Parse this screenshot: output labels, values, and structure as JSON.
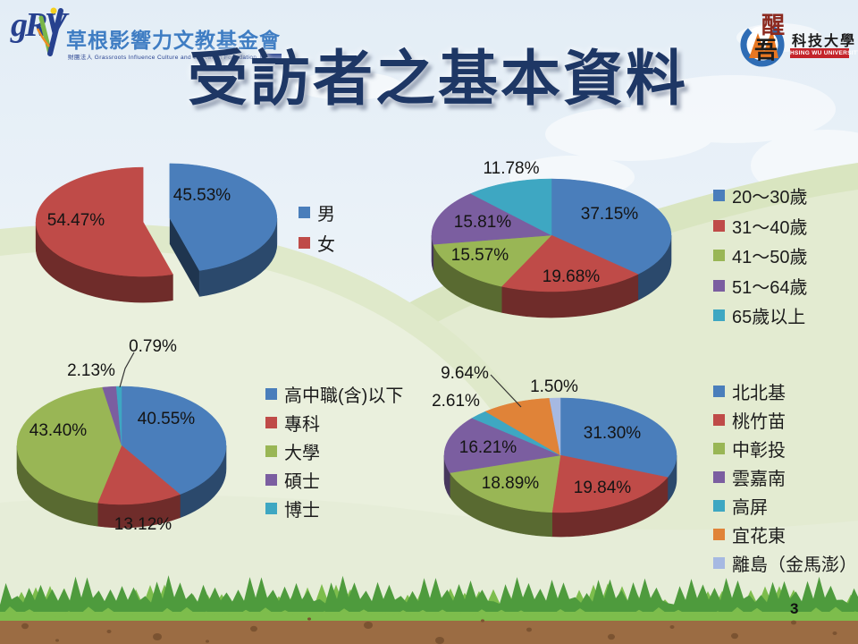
{
  "slide": {
    "page_number": "3"
  },
  "header": {
    "title": "受訪者之基本資料",
    "left_logo": {
      "monogram": "gRV",
      "org_name": "草根影響力文教基金會",
      "org_subtitle": "財團法人 Grassroots Influence Culture and Education Foundation"
    },
    "right_logo": {
      "univ_char_1": "醒",
      "univ_char_2": "吾",
      "univ_rest": "科技大學",
      "univ_en": "HSING WU UNIVERSITY"
    }
  },
  "chart_data": [
    {
      "id": "gender",
      "type": "pie",
      "style": "3d-exploded",
      "labels": [
        "男",
        "女"
      ],
      "values": [
        45.53,
        54.47
      ],
      "value_labels": [
        "45.53%",
        "54.47%"
      ],
      "colors": [
        "#4a7ebb",
        "#bf4b48"
      ],
      "legend_position": "right"
    },
    {
      "id": "age",
      "type": "pie",
      "style": "3d",
      "labels": [
        "20～30歲",
        "31～40歲",
        "41～50歲",
        "51～64歲",
        "65歲以上"
      ],
      "values": [
        37.15,
        19.68,
        15.57,
        15.81,
        11.78
      ],
      "value_labels": [
        "37.15%",
        "19.68%",
        "15.57%",
        "15.81%",
        "11.78%"
      ],
      "colors": [
        "#4a7ebb",
        "#bf4b48",
        "#99b655",
        "#7b5ea0",
        "#3ea7c2"
      ],
      "legend_position": "right"
    },
    {
      "id": "education",
      "type": "pie",
      "style": "3d",
      "labels": [
        "高中職(含)以下",
        "專科",
        "大學",
        "碩士",
        "博士"
      ],
      "values": [
        40.55,
        13.12,
        43.4,
        2.13,
        0.79
      ],
      "value_labels": [
        "40.55%",
        "13.12%",
        "43.40%",
        "2.13%",
        "0.79%"
      ],
      "colors": [
        "#4a7ebb",
        "#bf4b48",
        "#99b655",
        "#7b5ea0",
        "#3ea7c2"
      ],
      "legend_position": "right"
    },
    {
      "id": "region",
      "type": "pie",
      "style": "3d",
      "labels": [
        "北北基",
        "桃竹苗",
        "中彰投",
        "雲嘉南",
        "高屏",
        "宜花東",
        "離島（金馬澎）"
      ],
      "values": [
        31.3,
        19.84,
        18.89,
        16.21,
        2.61,
        9.64,
        1.5
      ],
      "value_labels": [
        "31.30%",
        "19.84%",
        "18.89%",
        "16.21%",
        "2.61%",
        "9.64%",
        "1.50%"
      ],
      "colors": [
        "#4a7ebb",
        "#bf4b48",
        "#99b655",
        "#7b5ea0",
        "#3ea7c2",
        "#e08338",
        "#a6b9e2"
      ],
      "legend_position": "right"
    }
  ]
}
